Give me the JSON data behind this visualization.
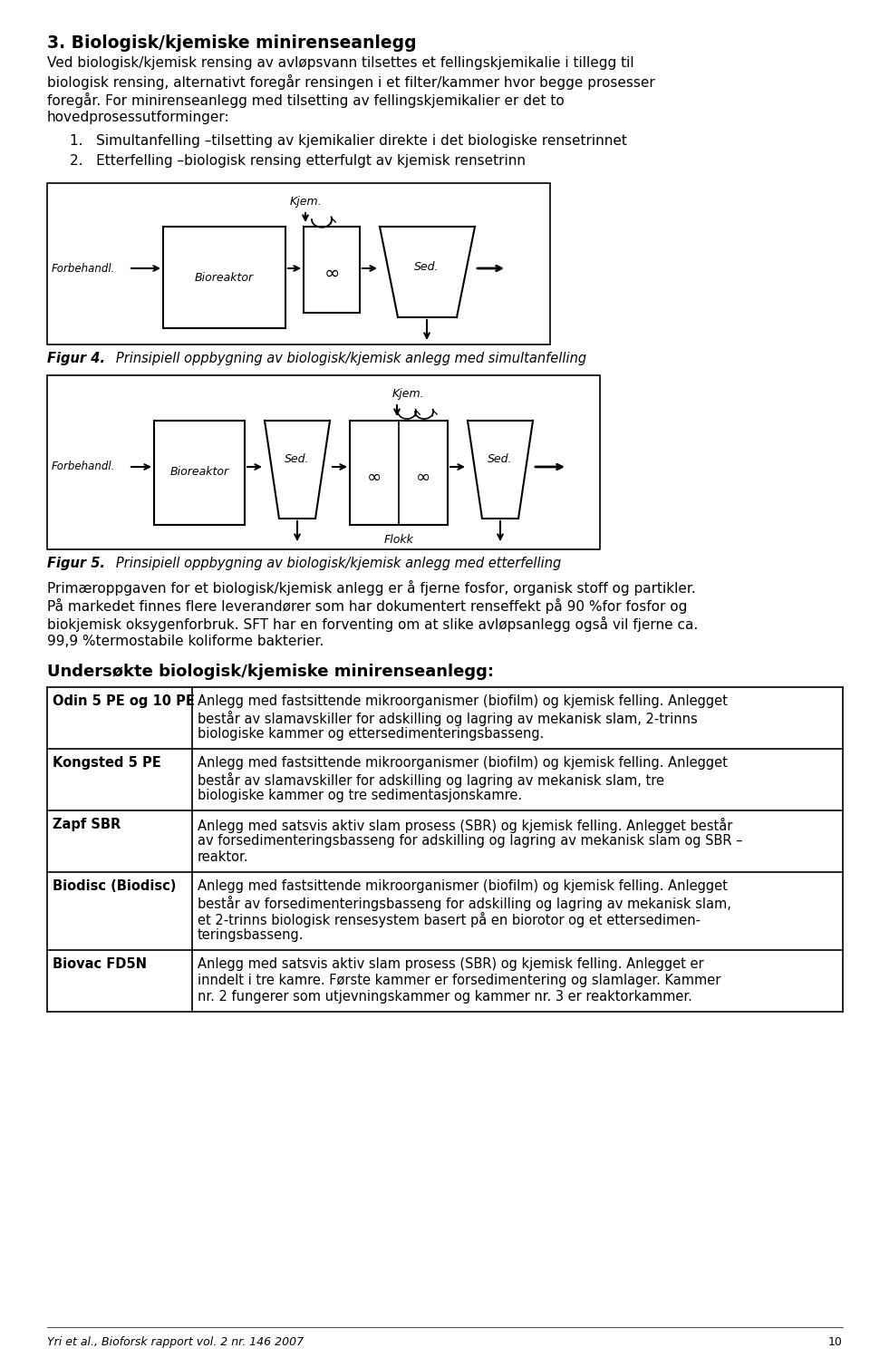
{
  "title": "3. Biologisk/kjemiske minirenseanlegg",
  "para1_lines": [
    "Ved biologisk/kjemisk rensing av avløpsvann tilsettes et fellingskjemikalie i tillegg til",
    "biologisk rensing, alternativt foregår rensingen i et filter/kammer hvor begge prosesser",
    "foregår. For minirenseanlegg med tilsetting av fellingskjemikalier er det to",
    "hovedprosessutforminger:"
  ],
  "item1": "1.   Simultanfelling –tilsetting av kjemikalier direkte i det biologiske rensetrinnet",
  "item2": "2.   Etterfelling –biologisk rensing etterfulgt av kjemisk rensetrinn",
  "fig4_label": "Figur 4.",
  "fig4_caption": "   Prinsipiell oppbygning av biologisk/kjemisk anlegg med simultanfelling",
  "fig5_label": "Figur 5.",
  "fig5_caption": "   Prinsipiell oppbygning av biologisk/kjemisk anlegg med etterfelling",
  "para2_lines": [
    "Primæroppgaven for et biologisk/kjemisk anlegg er å fjerne fosfor, organisk stoff og partikler.",
    "På markedet finnes flere leverandører som har dokumentert renseffekt på 90 %for fosfor og",
    "biokjemisk oksygenforbruk. SFT har en forventing om at slike avløpsanlegg også vil fjerne ca.",
    "99,9 %termostabile koliforme bakterier."
  ],
  "table_title": "Undersøkte biologisk/kjemiske minirenseanlegg:",
  "table_rows": [
    {
      "name": "Odin 5 PE og 10 PE",
      "desc_lines": [
        "Anlegg med fastsittende mikroorganismer (biofilm) og kjemisk felling. Anlegget",
        "består av slamavskiller for adskilling og lagring av mekanisk slam, 2-trinns",
        "biologiske kammer og ettersedimenteringsbasseng."
      ]
    },
    {
      "name": "Kongsted 5 PE",
      "desc_lines": [
        "Anlegg med fastsittende mikroorganismer (biofilm) og kjemisk felling. Anlegget",
        "består av slamavskiller for adskilling og lagring av mekanisk slam, tre",
        "biologiske kammer og tre sedimentasjonskamre."
      ]
    },
    {
      "name": "Zapf SBR",
      "desc_lines": [
        "Anlegg med satsvis aktiv slam prosess (SBR) og kjemisk felling. Anlegget består",
        "av forsedimenteringsbasseng for adskilling og lagring av mekanisk slam og SBR –",
        "reaktor."
      ]
    },
    {
      "name": "Biodisc (Biodisc)",
      "desc_lines": [
        "Anlegg med fastsittende mikroorganismer (biofilm) og kjemisk felling. Anlegget",
        "består av forsedimenteringsbasseng for adskilling og lagring av mekanisk slam,",
        "et 2-trinns biologisk rensesystem basert på en biorotor og et ettersedimen-",
        "teringsbasseng."
      ]
    },
    {
      "name": "Biovac FD5N",
      "desc_lines": [
        "Anlegg med satsvis aktiv slam prosess (SBR) og kjemisk felling. Anlegget er",
        "inndelt i tre kamre. Første kammer er forsedimentering og slamlager. Kammer",
        "nr. 2 fungerer som utjevningskammer og kammer nr. 3 er reaktorkammer."
      ]
    }
  ],
  "footer": "Yri et al., Bioforsk rapport vol. 2 nr. 146 2007",
  "page_num": "10"
}
